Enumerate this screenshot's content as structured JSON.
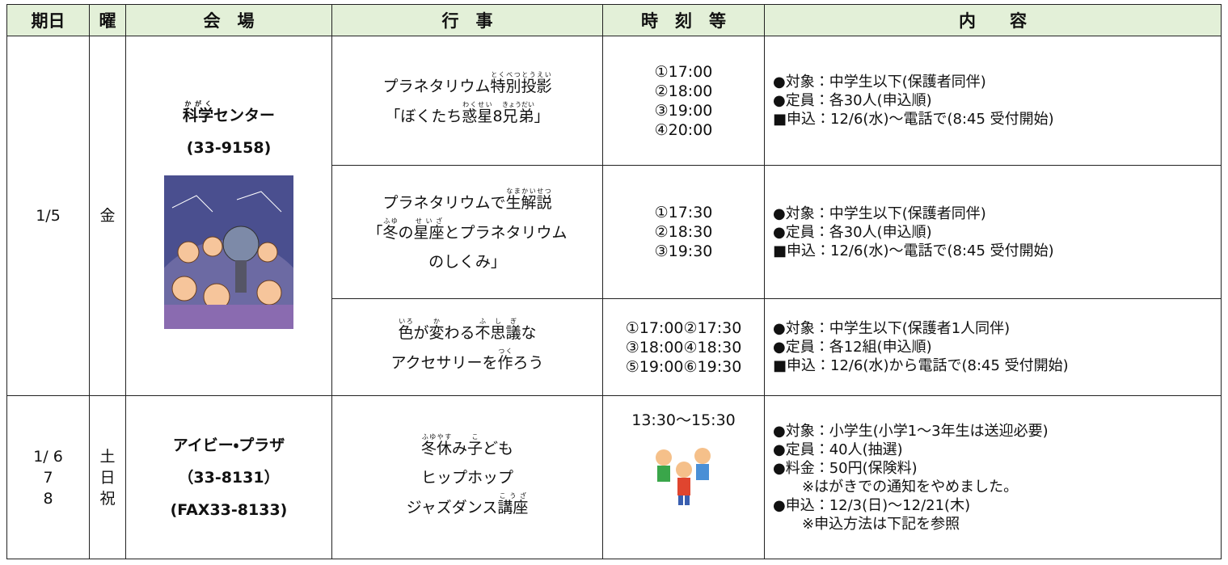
{
  "header": [
    "期日",
    "曜",
    "会　場",
    "行　事",
    "時　刻　等",
    "内　　容"
  ],
  "groups": [
    {
      "date": [
        "1/5"
      ],
      "day": [
        "金"
      ],
      "venue": [
        [
          {
            "t": "科学",
            "r": "かがく"
          },
          "センター"
        ],
        [
          "(33-9158)"
        ]
      ],
      "events": [
        {
          "title": [
            [
              "プラネタリウム",
              {
                "t": "特別",
                "r": "とくべつ"
              },
              {
                "t": "投影",
                "r": "とうえい"
              }
            ],
            [
              "「ぼくたち",
              {
                "t": "惑星",
                "r": "わくせい"
              },
              "8",
              {
                "t": "兄弟",
                "r": "きょうだい"
              },
              "」"
            ]
          ],
          "times": [
            "①17:00",
            "②18:00",
            "③19:00",
            "④20:00"
          ],
          "details": [
            "●対象：中学生以下(保護者同伴)",
            "●定員：各30人(申込順)",
            "■申込：12/6(水)～電話で(8:45 受付開始)"
          ]
        },
        {
          "title": [
            [
              "プラネタリウムで",
              {
                "t": "生",
                "r": "なま"
              },
              {
                "t": "解説",
                "r": "かいせつ"
              }
            ],
            [
              "「",
              {
                "t": "冬",
                "r": "ふゆ"
              },
              "の",
              {
                "t": "星座",
                "r": "せいざ"
              },
              "とプラネタリウム"
            ],
            [
              "のしくみ」"
            ]
          ],
          "times": [
            "①17:30",
            "②18:30",
            "③19:30"
          ],
          "details": [
            "●対象：中学生以下(保護者同伴)",
            "●定員：各30人(申込順)",
            "■申込：12/6(水)～電話で(8:45 受付開始)"
          ]
        },
        {
          "title": [
            [
              {
                "t": "色",
                "r": "いろ"
              },
              "が",
              {
                "t": "変",
                "r": "か"
              },
              "わる",
              {
                "t": "不思議",
                "r": "ふしぎ"
              },
              "な"
            ],
            [
              "アクセサリーを",
              {
                "t": "作",
                "r": "つく"
              },
              "ろう"
            ]
          ],
          "times": [
            "①17:00②17:30",
            "③18:00④18:30",
            "⑤19:00⑥19:30"
          ],
          "details": [
            "●対象：中学生以下(保護者1人同伴)",
            "●定員：各12組(申込順)",
            "■申込：12/6(水)から電話で(8:45 受付開始)"
          ]
        }
      ]
    },
    {
      "date": [
        "1/ 6",
        "7",
        "8"
      ],
      "day": [
        "土",
        "日",
        "祝"
      ],
      "venue": [
        [
          "アイビー・プラザ"
        ],
        [
          "（33-8131）"
        ],
        [
          "(FAX33-8133)"
        ]
      ],
      "events": [
        {
          "title": [
            [
              {
                "t": "冬休",
                "r": "ふゆやす"
              },
              "み",
              {
                "t": "子",
                "r": "こ"
              },
              "ども"
            ],
            [
              "ヒップホップ"
            ],
            [
              "ジャズダンス",
              {
                "t": "講座",
                "r": "こうざ"
              }
            ]
          ],
          "times": [
            "13:30～15:30"
          ],
          "details": [
            "●対象：小学生(小学1～3年生は送迎必要)",
            "●定員：40人(抽選)",
            "●料金：50円(保険料)",
            "　　※はがきでの通知をやめました。",
            "●申込：12/3(日)～12/21(木)",
            "　　※申込方法は下記を参照"
          ]
        }
      ]
    }
  ]
}
